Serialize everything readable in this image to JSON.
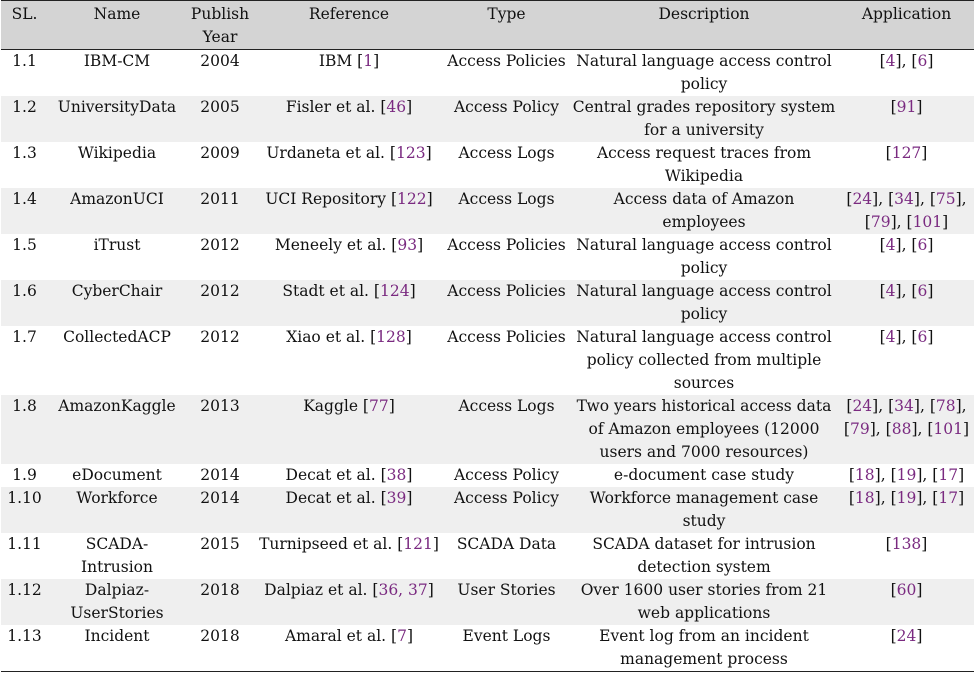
{
  "headers": [
    "SL.",
    "Name",
    "Publish Year",
    "Reference",
    "Type",
    "Description",
    "Application"
  ],
  "rows": [
    {
      "sl": "1.1",
      "name": "IBM-CM",
      "year": "2004",
      "ref_text": "IBM",
      "ref_cites": "1",
      "type": "Access Policies",
      "description": "Natural language access control policy",
      "applications": [
        "4",
        "6"
      ]
    },
    {
      "sl": "1.2",
      "name": "UniversityData",
      "year": "2005",
      "ref_text": "Fisler et al.",
      "ref_cites": "46",
      "type": "Access Policy",
      "description": "Central grades repository system for a university",
      "applications": [
        "91"
      ]
    },
    {
      "sl": "1.3",
      "name": "Wikipedia",
      "year": "2009",
      "ref_text": "Urdaneta et al.",
      "ref_cites": "123",
      "type": "Access Logs",
      "description": "Access request traces from Wikipedia",
      "applications": [
        "127"
      ]
    },
    {
      "sl": "1.4",
      "name": "AmazonUCI",
      "year": "2011",
      "ref_text": "UCI Repository",
      "ref_cites": "122",
      "type": "Access Logs",
      "description": "Access data of Amazon employees",
      "applications": [
        "24",
        "34",
        "75",
        "79",
        "101"
      ]
    },
    {
      "sl": "1.5",
      "name": "iTrust",
      "year": "2012",
      "ref_text": "Meneely et al.",
      "ref_cites": "93",
      "type": "Access Policies",
      "description": "Natural language access control policy",
      "applications": [
        "4",
        "6"
      ]
    },
    {
      "sl": "1.6",
      "name": "CyberChair",
      "year": "2012",
      "ref_text": "Stadt et al.",
      "ref_cites": "124",
      "type": "Access Policies",
      "description": "Natural language access control policy",
      "applications": [
        "4",
        "6"
      ]
    },
    {
      "sl": "1.7",
      "name": "CollectedACP",
      "year": "2012",
      "ref_text": "Xiao et al.",
      "ref_cites": "128",
      "type": "Access Policies",
      "description": "Natural language access control policy collected from multiple sources",
      "applications": [
        "4",
        "6"
      ]
    },
    {
      "sl": "1.8",
      "name": "AmazonKaggle",
      "year": "2013",
      "ref_text": "Kaggle",
      "ref_cites": "77",
      "type": "Access Logs",
      "description": "Two years historical access data of Amazon employees (12000 users and 7000 resources)",
      "applications": [
        "24",
        "34",
        "78",
        "79",
        "88",
        "101"
      ]
    },
    {
      "sl": "1.9",
      "name": "eDocument",
      "year": "2014",
      "ref_text": "Decat et al.",
      "ref_cites": "38",
      "type": "Access Policy",
      "description": "e-document case study",
      "applications": [
        "18",
        "19",
        "17"
      ]
    },
    {
      "sl": "1.10",
      "name": "Workforce",
      "year": "2014",
      "ref_text": "Decat et al.",
      "ref_cites": "39",
      "type": "Access Policy",
      "description": "Workforce management case study",
      "applications": [
        "18",
        "19",
        "17"
      ]
    },
    {
      "sl": "1.11",
      "name": "SCADA-Intrusion",
      "year": "2015",
      "ref_text": "Turnipseed et al.",
      "ref_cites": "121",
      "type": "SCADA Data",
      "description": "SCADA dataset for intrusion detection system",
      "applications": [
        "138"
      ]
    },
    {
      "sl": "1.12",
      "name": "Dalpiaz-UserStories",
      "year": "2018",
      "ref_text": "Dalpiaz et al.",
      "ref_cites": "36, 37",
      "type": "User Stories",
      "description": "Over 1600 user stories from 21 web applications",
      "applications": [
        "60"
      ]
    },
    {
      "sl": "1.13",
      "name": "Incident",
      "year": "2018",
      "ref_text": "Amaral et al.",
      "ref_cites": "7",
      "type": "Event Logs",
      "description": "Event log from an incident management process",
      "applications": [
        "24"
      ]
    }
  ]
}
